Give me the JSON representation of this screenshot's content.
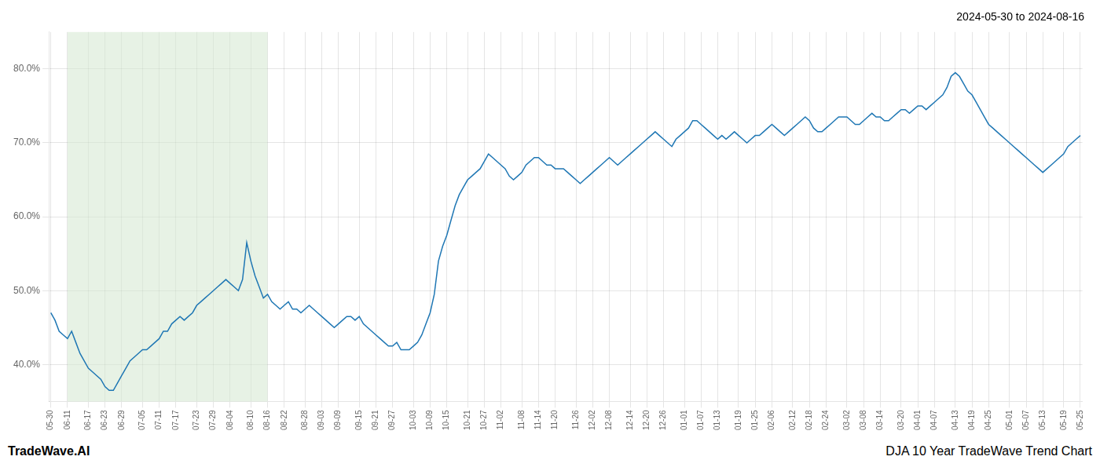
{
  "chart_data": {
    "type": "line",
    "title": "2024-05-30 to 2024-08-16",
    "footer_left": "TradeWave.AI",
    "footer_right": "DJA 10 Year TradeWave Trend Chart",
    "color": "#1f77b4",
    "grid": true,
    "ylim": [
      35.0,
      85.0
    ],
    "yticks": [
      {
        "value": 40.0,
        "label": "40.0%"
      },
      {
        "value": 50.0,
        "label": "50.0%"
      },
      {
        "value": 60.0,
        "label": "60.0%"
      },
      {
        "value": 70.0,
        "label": "70.0%"
      },
      {
        "value": 80.0,
        "label": "80.0%"
      }
    ],
    "shaded_span": {
      "from": "06-11",
      "to": "08-16",
      "color": "#d4e8d0"
    },
    "categories": [
      "05-30",
      null,
      null,
      null,
      "06-11",
      null,
      null,
      null,
      null,
      "06-17",
      null,
      null,
      null,
      "06-23",
      null,
      null,
      null,
      "06-29",
      null,
      null,
      null,
      null,
      "07-05",
      null,
      null,
      null,
      "07-11",
      null,
      null,
      null,
      "07-17",
      null,
      null,
      null,
      null,
      "07-23",
      null,
      null,
      null,
      "07-29",
      null,
      null,
      null,
      "08-04",
      null,
      null,
      null,
      null,
      "08-10",
      null,
      null,
      null,
      "08-16",
      null,
      null,
      null,
      "08-22",
      null,
      null,
      null,
      null,
      "08-28",
      null,
      null,
      null,
      "09-03",
      null,
      null,
      null,
      "09-09",
      null,
      null,
      null,
      null,
      "09-15",
      null,
      null,
      null,
      "09-21",
      null,
      null,
      null,
      "09-27",
      null,
      null,
      null,
      null,
      "10-03",
      null,
      null,
      null,
      "10-09",
      null,
      null,
      null,
      "10-15",
      null,
      null,
      null,
      null,
      "10-21",
      null,
      null,
      null,
      "10-27",
      null,
      null,
      null,
      "11-02",
      null,
      null,
      null,
      null,
      "11-08",
      null,
      null,
      null,
      "11-14",
      null,
      null,
      null,
      "11-20",
      null,
      null,
      null,
      null,
      "11-26",
      null,
      null,
      null,
      "12-02",
      null,
      null,
      null,
      "12-08",
      null,
      null,
      null,
      null,
      "12-14",
      null,
      null,
      null,
      "12-20",
      null,
      null,
      null,
      "12-26",
      null,
      null,
      null,
      null,
      "01-01",
      null,
      null,
      null,
      "01-07",
      null,
      null,
      null,
      "01-13",
      null,
      null,
      null,
      null,
      "01-19",
      null,
      null,
      null,
      "01-25",
      null,
      null,
      null,
      "02-06",
      null,
      null,
      null,
      null,
      "02-12",
      null,
      null,
      null,
      "02-18",
      null,
      null,
      null,
      "02-24",
      null,
      null,
      null,
      null,
      "03-02",
      null,
      null,
      null,
      "03-08",
      null,
      null,
      null,
      "03-14",
      null,
      null,
      null,
      null,
      "03-20",
      null,
      null,
      null,
      "04-01",
      null,
      null,
      null,
      "04-07",
      null,
      null,
      null,
      null,
      "04-13",
      null,
      null,
      null,
      "04-19",
      null,
      null,
      null,
      "04-25",
      null,
      null,
      null,
      null,
      "05-01",
      null,
      null,
      null,
      "05-07",
      null,
      null,
      null,
      "05-13",
      null,
      null,
      null,
      null,
      "05-19",
      null,
      null,
      null,
      "05-25"
    ],
    "values": [
      47.0,
      46.0,
      44.5,
      44.0,
      43.5,
      44.5,
      43.0,
      41.5,
      40.5,
      39.5,
      39.0,
      38.5,
      38.0,
      37.0,
      36.5,
      36.5,
      37.5,
      38.5,
      39.5,
      40.5,
      41.0,
      41.5,
      42.0,
      42.0,
      42.5,
      43.0,
      43.5,
      44.5,
      44.5,
      45.5,
      46.0,
      46.5,
      46.0,
      46.5,
      47.0,
      48.0,
      48.5,
      49.0,
      49.5,
      50.0,
      50.5,
      51.0,
      51.5,
      51.0,
      50.5,
      50.0,
      51.5,
      56.5,
      54.0,
      52.0,
      50.5,
      49.0,
      49.5,
      48.5,
      48.0,
      47.5,
      48.0,
      48.5,
      47.5,
      47.5,
      47.0,
      47.5,
      48.0,
      47.5,
      47.0,
      46.5,
      46.0,
      45.5,
      45.0,
      45.5,
      46.0,
      46.5,
      46.5,
      46.0,
      46.5,
      45.5,
      45.0,
      44.5,
      44.0,
      43.5,
      43.0,
      42.5,
      42.5,
      43.0,
      42.0,
      42.0,
      42.0,
      42.5,
      43.0,
      44.0,
      45.5,
      47.0,
      49.5,
      54.0,
      56.0,
      57.5,
      59.5,
      61.5,
      63.0,
      64.0,
      65.0,
      65.5,
      66.0,
      66.5,
      67.5,
      68.5,
      68.0,
      67.5,
      67.0,
      66.5,
      65.5,
      65.0,
      65.5,
      66.0,
      67.0,
      67.5,
      68.0,
      68.0,
      67.5,
      67.0,
      67.0,
      66.5,
      66.5,
      66.5,
      66.0,
      65.5,
      65.0,
      64.5,
      65.0,
      65.5,
      66.0,
      66.5,
      67.0,
      67.5,
      68.0,
      67.5,
      67.0,
      67.5,
      68.0,
      68.5,
      69.0,
      69.5,
      70.0,
      70.5,
      71.0,
      71.5,
      71.0,
      70.5,
      70.0,
      69.5,
      70.5,
      71.0,
      71.5,
      72.0,
      73.0,
      73.0,
      72.5,
      72.0,
      71.5,
      71.0,
      70.5,
      71.0,
      70.5,
      71.0,
      71.5,
      71.0,
      70.5,
      70.0,
      70.5,
      71.0,
      71.0,
      71.5,
      72.0,
      72.5,
      72.0,
      71.5,
      71.0,
      71.5,
      72.0,
      72.5,
      73.0,
      73.5,
      73.0,
      72.0,
      71.5,
      71.5,
      72.0,
      72.5,
      73.0,
      73.5,
      73.5,
      73.5,
      73.0,
      72.5,
      72.5,
      73.0,
      73.5,
      74.0,
      73.5,
      73.5,
      73.0,
      73.0,
      73.5,
      74.0,
      74.5,
      74.5,
      74.0,
      74.5,
      75.0,
      75.0,
      74.5,
      75.0,
      75.5,
      76.0,
      76.5,
      77.5,
      79.0,
      79.5,
      79.0,
      78.0,
      77.0,
      76.5,
      75.5,
      74.5,
      73.5,
      72.5,
      72.0,
      71.5,
      71.0,
      70.5,
      70.0,
      69.5,
      69.0,
      68.5,
      68.0,
      67.5,
      67.0,
      66.5,
      66.0,
      66.5,
      67.0,
      67.5,
      68.0,
      68.5,
      69.5,
      70.0,
      70.5,
      71.0
    ]
  }
}
